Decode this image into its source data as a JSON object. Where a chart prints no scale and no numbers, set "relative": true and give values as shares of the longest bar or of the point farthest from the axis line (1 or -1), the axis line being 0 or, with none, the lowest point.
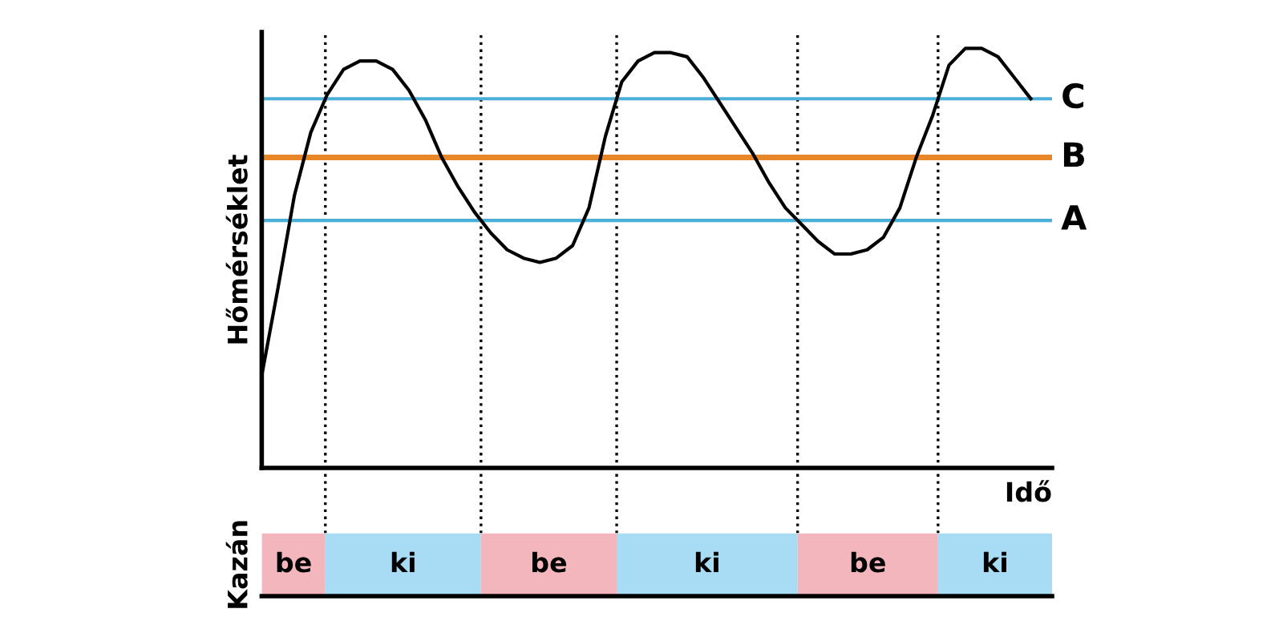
{
  "chart_data": [
    {
      "type": "line",
      "relative": true,
      "ylabel": "Hőmérséklet",
      "xlabel": "Idő",
      "grid": false,
      "legend": false,
      "marker": "none",
      "line_style": "solid",
      "categories": [
        null,
        null,
        null,
        null,
        null,
        null,
        null,
        null,
        null,
        null,
        null,
        null,
        null,
        null,
        null,
        null,
        null,
        null,
        null,
        null,
        null,
        null,
        null,
        null,
        null,
        null,
        null,
        null,
        null,
        null,
        null,
        null,
        null,
        null,
        null,
        null,
        null,
        null,
        null,
        null,
        null,
        null,
        null,
        null,
        null,
        null,
        null,
        null
      ],
      "series": [
        {
          "color": "#000000",
          "values": [
            0.22,
            0.43,
            0.65,
            0.8,
            0.89,
            0.95,
            0.97,
            0.97,
            0.95,
            0.9,
            0.83,
            0.74,
            0.67,
            0.61,
            0.56,
            0.52,
            0.5,
            0.49,
            0.5,
            0.53,
            0.62,
            0.79,
            0.92,
            0.97,
            0.99,
            0.99,
            0.98,
            0.93,
            0.87,
            0.81,
            0.75,
            0.68,
            0.62,
            0.58,
            0.54,
            0.51,
            0.51,
            0.52,
            0.55,
            0.62,
            0.74,
            0.84,
            0.96,
            1.0,
            1.0,
            0.98,
            0.93,
            0.88
          ]
        }
      ],
      "ref_lines": [
        {
          "axis": "y",
          "value": 0.88,
          "label": "C",
          "color": "#4ab0d8",
          "line_style": "solid"
        },
        {
          "axis": "y",
          "value": 0.74,
          "label": "B",
          "color": "#e8862a",
          "line_style": "solid"
        },
        {
          "axis": "y",
          "value": 0.59,
          "label": "A",
          "color": "#4ab0d8",
          "line_style": "solid"
        }
      ]
    },
    {
      "type": "other",
      "ylabel": "Kazán",
      "categories": [
        "be",
        "ki",
        "be",
        "ki",
        "be",
        "ki"
      ],
      "colors": [
        "#f4b6bd",
        "#a8dcf5",
        "#f4b6bd",
        "#a8dcf5",
        "#f4b6bd",
        "#a8dcf5"
      ]
    }
  ]
}
